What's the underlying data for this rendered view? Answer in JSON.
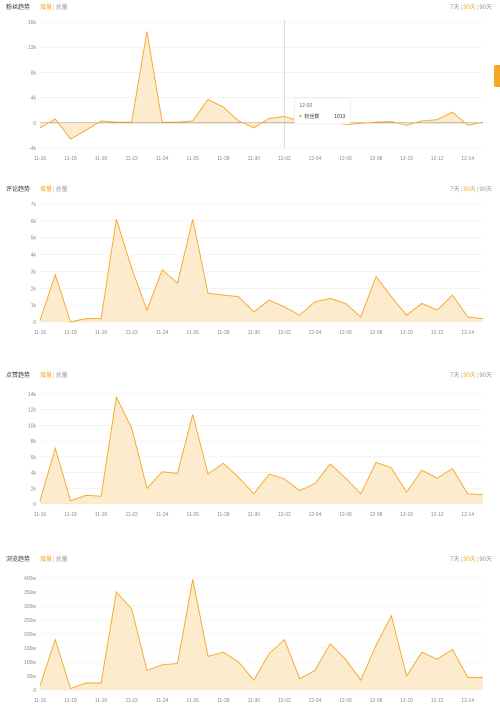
{
  "accent_color": "#f5a623",
  "panels": [
    {
      "title": "粉丝趋势",
      "toggle": {
        "active": "增量",
        "sep": "|",
        "inactive": "总量"
      },
      "range": [
        "7天",
        "30天",
        "90天"
      ],
      "active_range": "30天"
    },
    {
      "title": "评论趋势",
      "toggle": {
        "active": "增量",
        "sep": "|",
        "inactive": "总量"
      },
      "range": [
        "7天",
        "30天",
        "90天"
      ],
      "active_range": "30天"
    },
    {
      "title": "点赞趋势",
      "toggle": {
        "active": "增量",
        "sep": "|",
        "inactive": "总量"
      },
      "range": [
        "7天",
        "30天",
        "90天"
      ],
      "active_range": "30天"
    },
    {
      "title": "浏览趋势",
      "toggle": {
        "active": "增量",
        "sep": "|",
        "inactive": "总量"
      },
      "range": [
        "7天",
        "30天",
        "90天"
      ],
      "active_range": "30天"
    }
  ],
  "chart_data": [
    {
      "type": "area",
      "x": [
        "11-16",
        "11-17",
        "11-18",
        "11-19",
        "11-20",
        "11-21",
        "11-22",
        "11-23",
        "11-24",
        "11-25",
        "11-26",
        "11-27",
        "11-28",
        "11-29",
        "11-30",
        "12-01",
        "12-02",
        "12-03",
        "12-04",
        "12-05",
        "12-06",
        "12-07",
        "12-08",
        "12-09",
        "12-10",
        "12-11",
        "12-12",
        "12-13",
        "12-14",
        "12-15"
      ],
      "xticks": [
        "11-16",
        "11-18",
        "11-20",
        "11-22",
        "11-24",
        "11-26",
        "11-28",
        "11-30",
        "12-02",
        "12-04",
        "12-06",
        "12-08",
        "12-10",
        "12-12",
        "12-14"
      ],
      "yticks": [
        "-4k",
        "0",
        "4k",
        "8k",
        "12k",
        "16k"
      ],
      "ylim": [
        -4000,
        16000
      ],
      "values": [
        -800,
        600,
        -2600,
        -1200,
        300,
        100,
        100,
        14500,
        100,
        100,
        300,
        3700,
        2500,
        300,
        -800,
        700,
        1013,
        300,
        100,
        200,
        -300,
        -100,
        100,
        200,
        -400,
        300,
        500,
        1700,
        -400,
        100
      ],
      "tooltip": {
        "date": "12-02",
        "series": "粉丝数",
        "value": "1013"
      }
    },
    {
      "type": "area",
      "x": [
        "11-16",
        "11-17",
        "11-18",
        "11-19",
        "11-20",
        "11-21",
        "11-22",
        "11-23",
        "11-24",
        "11-25",
        "11-26",
        "11-27",
        "11-28",
        "11-29",
        "11-30",
        "12-01",
        "12-02",
        "12-03",
        "12-04",
        "12-05",
        "12-06",
        "12-07",
        "12-08",
        "12-09",
        "12-10",
        "12-11",
        "12-12",
        "12-13",
        "12-14",
        "12-15"
      ],
      "xticks": [
        "11-16",
        "11-18",
        "11-20",
        "11-22",
        "11-24",
        "11-26",
        "11-28",
        "11-30",
        "12-02",
        "12-04",
        "12-06",
        "12-08",
        "12-10",
        "12-12",
        "12-14"
      ],
      "yticks": [
        "0",
        "1k",
        "2k",
        "3k",
        "4k",
        "5k",
        "6k",
        "7k"
      ],
      "ylim": [
        0,
        7000
      ],
      "values": [
        100,
        2800,
        0,
        200,
        200,
        6100,
        3200,
        700,
        3100,
        2300,
        6100,
        1700,
        1600,
        1500,
        600,
        1300,
        900,
        400,
        1200,
        1400,
        1100,
        300,
        2700,
        1500,
        400,
        1100,
        700,
        1600,
        300,
        200
      ]
    },
    {
      "type": "area",
      "x": [
        "11-16",
        "11-17",
        "11-18",
        "11-19",
        "11-20",
        "11-21",
        "11-22",
        "11-23",
        "11-24",
        "11-25",
        "11-26",
        "11-27",
        "11-28",
        "11-29",
        "11-30",
        "12-01",
        "12-02",
        "12-03",
        "12-04",
        "12-05",
        "12-06",
        "12-07",
        "12-08",
        "12-09",
        "12-10",
        "12-11",
        "12-12",
        "12-13",
        "12-14",
        "12-15"
      ],
      "xticks": [
        "11-16",
        "11-18",
        "11-20",
        "11-22",
        "11-24",
        "11-26",
        "11-28",
        "11-30",
        "12-02",
        "12-04",
        "12-06",
        "12-08",
        "12-10",
        "12-12",
        "12-14"
      ],
      "yticks": [
        "0",
        "2k",
        "4k",
        "6k",
        "8k",
        "10k",
        "12k",
        "14k"
      ],
      "ylim": [
        0,
        14000
      ],
      "values": [
        400,
        7100,
        400,
        1100,
        1000,
        13600,
        9700,
        2000,
        4100,
        3900,
        11400,
        3800,
        5200,
        3400,
        1300,
        3800,
        3200,
        1700,
        2600,
        5100,
        3300,
        1300,
        5300,
        4600,
        1500,
        4300,
        3300,
        4500,
        1300,
        1200
      ]
    },
    {
      "type": "area",
      "x": [
        "11-16",
        "11-17",
        "11-18",
        "11-19",
        "11-20",
        "11-21",
        "11-22",
        "11-23",
        "11-24",
        "11-25",
        "11-26",
        "11-27",
        "11-28",
        "11-29",
        "11-30",
        "12-01",
        "12-02",
        "12-03",
        "12-04",
        "12-05",
        "12-06",
        "12-07",
        "12-08",
        "12-09",
        "12-10",
        "12-11",
        "12-12",
        "12-13",
        "12-14",
        "12-15"
      ],
      "xticks": [
        "11-16",
        "11-18",
        "11-20",
        "11-22",
        "11-24",
        "11-26",
        "11-28",
        "11-30",
        "12-02",
        "12-04",
        "12-06",
        "12-08",
        "12-10",
        "12-12",
        "12-14"
      ],
      "yticks": [
        "0",
        "50w",
        "100w",
        "150w",
        "200w",
        "250w",
        "300w",
        "350w",
        "400w"
      ],
      "ylim": [
        0,
        400
      ],
      "values": [
        15,
        180,
        5,
        25,
        25,
        350,
        290,
        70,
        90,
        95,
        395,
        120,
        135,
        100,
        35,
        130,
        180,
        40,
        70,
        165,
        110,
        35,
        160,
        265,
        50,
        135,
        110,
        145,
        45,
        45
      ]
    }
  ]
}
